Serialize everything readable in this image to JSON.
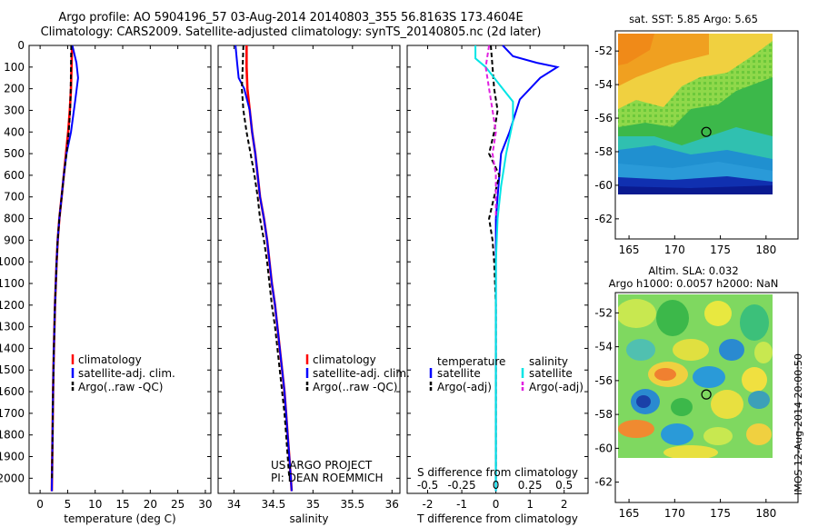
{
  "figure": {
    "title_line1": "Argo profile: AO 5904196_57 03-Aug-2014 20140803_355 56.8163S 173.4604E",
    "title_line2": "Climatology: CARS2009. Satellite-adjusted climatology: synTS_20140805.nc (2d later)",
    "project_line1": "US ARGO PROJECT",
    "project_line2": "PI: DEAN ROEMMICH",
    "stamp": "IMOS 12-Aug-2014 20:00:50",
    "colors": {
      "climatology": "#ff0000",
      "satellite": "#0000ff",
      "argo": "#000000",
      "satellite_salinity": "#00e5e5",
      "argo_salinity": "#e020e0"
    }
  },
  "chart_data": [
    {
      "type": "line",
      "xlabel": "temperature (deg C)",
      "xlim": [
        -2,
        31
      ],
      "xticks": [
        0,
        5,
        10,
        15,
        20,
        25,
        30
      ],
      "ylim": [
        2070,
        0
      ],
      "yticks": [
        0,
        100,
        200,
        300,
        400,
        500,
        600,
        700,
        800,
        900,
        1000,
        1100,
        1200,
        1300,
        1400,
        1500,
        1600,
        1700,
        1800,
        1900,
        2000
      ],
      "legend": [
        "climatology",
        "satellite-adj. clim.",
        "Argo(..raw -QC)"
      ],
      "series": [
        {
          "name": "climatology",
          "color": "#ff0000",
          "dash": "",
          "x": [
            5.8,
            5.7,
            5.6,
            5.4,
            5.1,
            4.7,
            4.3,
            3.9,
            3.5,
            3.2,
            3.0,
            2.85,
            2.7,
            2.6,
            2.5,
            2.42,
            2.35,
            2.3,
            2.25,
            2.2,
            2.15,
            2.12
          ],
          "y": [
            0,
            100,
            200,
            300,
            400,
            500,
            600,
            700,
            800,
            900,
            1000,
            1100,
            1200,
            1300,
            1400,
            1500,
            1600,
            1700,
            1800,
            1900,
            2000,
            2060
          ]
        },
        {
          "name": "satellite-adj. clim.",
          "color": "#0000ff",
          "dash": "",
          "x": [
            5.85,
            6.6,
            6.9,
            6.4,
            5.6,
            4.8,
            4.3,
            3.9,
            3.5,
            3.2,
            3.0,
            2.85,
            2.7,
            2.6,
            2.5,
            2.42,
            2.35,
            2.3,
            2.25,
            2.2,
            2.15,
            2.12
          ],
          "y": [
            0,
            80,
            150,
            250,
            400,
            500,
            600,
            700,
            800,
            900,
            1000,
            1100,
            1200,
            1300,
            1400,
            1500,
            1600,
            1700,
            1800,
            1900,
            2000,
            2060
          ]
        },
        {
          "name": "Argo(..raw -QC)",
          "color": "#000000",
          "dash": "5,3",
          "x": [
            5.65,
            5.6,
            5.55,
            5.45,
            5.2,
            4.8,
            4.3,
            3.9,
            3.5,
            3.2,
            3.0,
            2.85,
            2.7,
            2.6,
            2.5,
            2.42,
            2.35,
            2.3,
            2.25,
            2.2,
            2.15
          ],
          "y": [
            0,
            100,
            200,
            300,
            400,
            500,
            600,
            700,
            800,
            900,
            1000,
            1100,
            1200,
            1300,
            1400,
            1500,
            1600,
            1700,
            1800,
            1900,
            2000
          ]
        }
      ]
    },
    {
      "type": "line",
      "xlabel": "salinity",
      "xlim": [
        33.8,
        36.1
      ],
      "xticks": [
        34,
        34.5,
        35,
        35.5,
        36
      ],
      "ylim": [
        2070,
        0
      ],
      "legend": [
        "climatology",
        "satellite-adj. clim.",
        "Argo(..raw -QC)"
      ],
      "series": [
        {
          "name": "climatology",
          "color": "#ff0000",
          "dash": "",
          "x": [
            34.16,
            34.16,
            34.17,
            34.2,
            34.23,
            34.27,
            34.3,
            34.33,
            34.38,
            34.42,
            34.45,
            34.48,
            34.52,
            34.55,
            34.58,
            34.61,
            34.64,
            34.66,
            34.68,
            34.7,
            34.72,
            34.73
          ],
          "y": [
            0,
            100,
            200,
            300,
            400,
            500,
            600,
            700,
            800,
            900,
            1000,
            1100,
            1200,
            1300,
            1400,
            1500,
            1600,
            1700,
            1800,
            1900,
            2000,
            2060
          ]
        },
        {
          "name": "satellite-adj. clim.",
          "color": "#0000ff",
          "dash": "",
          "x": [
            34.02,
            34.04,
            34.06,
            34.13,
            34.2,
            34.23,
            34.27,
            34.3,
            34.33,
            34.38,
            34.42,
            34.45,
            34.48,
            34.52,
            34.55,
            34.58,
            34.61,
            34.64,
            34.66,
            34.68,
            34.7,
            34.72,
            34.73
          ],
          "y": [
            0,
            80,
            150,
            200,
            300,
            400,
            500,
            600,
            700,
            800,
            900,
            1000,
            1100,
            1200,
            1300,
            1400,
            1500,
            1600,
            1700,
            1800,
            1900,
            2000,
            2060
          ]
        },
        {
          "name": "Argo(..raw -QC)",
          "color": "#000000",
          "dash": "5,3",
          "x": [
            34.12,
            34.11,
            34.1,
            34.12,
            34.16,
            34.21,
            34.26,
            34.3,
            34.33,
            34.38,
            34.42,
            34.45,
            34.48,
            34.52,
            34.55,
            34.58,
            34.61,
            34.64,
            34.66,
            34.68,
            34.7
          ],
          "y": [
            0,
            100,
            200,
            300,
            400,
            500,
            600,
            700,
            800,
            900,
            1000,
            1100,
            1200,
            1300,
            1400,
            1500,
            1600,
            1700,
            1800,
            1900,
            2000
          ]
        }
      ]
    },
    {
      "type": "line",
      "xlabel": "T difference from climatology",
      "xlabel_top": "S difference from climatology",
      "xlim": [
        -2.6,
        2.7
      ],
      "xticks": [
        -2,
        -1,
        0,
        1,
        2
      ],
      "top_ticks": [
        "-0.5",
        "-0.25",
        "0",
        "0.25",
        "0.5"
      ],
      "top_tick_positions": [
        -2,
        -1,
        0,
        1,
        2
      ],
      "ylim": [
        2070,
        0
      ],
      "legend_temperature_title": "temperature",
      "legend_salinity_title": "salinity",
      "legend_temperature": [
        "satellite",
        "Argo(-adj)"
      ],
      "legend_salinity": [
        "satellite",
        "Argo(-adj)"
      ],
      "series": [
        {
          "name": "satellite",
          "color": "#0000ff",
          "dash": "",
          "x": [
            0.2,
            0.5,
            1.2,
            1.8,
            1.3,
            0.7,
            0.4,
            0.15,
            0.1,
            0.05,
            0.0,
            0.0,
            0.0,
            0.0,
            0.0,
            0.0,
            0.0,
            0.0,
            0.0
          ],
          "y": [
            0,
            50,
            80,
            100,
            150,
            250,
            400,
            500,
            600,
            700,
            800,
            900,
            1000,
            1200,
            1400,
            1600,
            1800,
            2000,
            2060
          ]
        },
        {
          "name": "Argo(-adj)",
          "color": "#000000",
          "dash": "5,3",
          "x": [
            -0.15,
            -0.1,
            -0.05,
            0.05,
            -0.05,
            -0.2,
            0.1,
            -0.05,
            -0.2,
            -0.1,
            -0.05,
            0.0,
            0.0,
            0.0,
            0.0
          ],
          "y": [
            0,
            100,
            200,
            300,
            400,
            500,
            600,
            700,
            800,
            900,
            1000,
            1200,
            1400,
            1600,
            2000
          ]
        },
        {
          "name": "satellite",
          "color": "#00e5e5",
          "dash": "",
          "x": [
            -0.6,
            -0.6,
            -0.3,
            0.2,
            0.5,
            0.5,
            0.3,
            0.15,
            0.05,
            0.0,
            0.0,
            0.0,
            0.0,
            0.0
          ],
          "y": [
            0,
            60,
            100,
            200,
            260,
            350,
            500,
            650,
            800,
            1000,
            1200,
            1500,
            1800,
            2060
          ]
        },
        {
          "name": "Argo(-adj)",
          "color": "#e020e0",
          "dash": "5,3",
          "x": [
            -0.2,
            -0.3,
            -0.2,
            -0.1,
            0.0,
            -0.1,
            0.0,
            0.0,
            0.0
          ],
          "y": [
            0,
            100,
            200,
            300,
            400,
            500,
            600,
            700,
            800
          ]
        }
      ]
    },
    {
      "type": "heatmap",
      "title": "sat. SST: 5.85  Argo: 5.65",
      "xlim": [
        163.5,
        183.5
      ],
      "ylim": [
        -63.2,
        -50.8
      ],
      "xticks": [
        165,
        170,
        175,
        180
      ],
      "yticks": [
        -52,
        -54,
        -56,
        -58,
        -60,
        -62
      ],
      "marker": {
        "lon": 173.46,
        "lat": -56.82
      }
    },
    {
      "type": "heatmap",
      "title_line1": "Altim. SLA: 0.032",
      "title_line2": "Argo h1000: 0.0057 h2000: NaN",
      "xlim": [
        163.5,
        183.5
      ],
      "ylim": [
        -63.2,
        -50.8
      ],
      "xticks": [
        165,
        170,
        175,
        180
      ],
      "yticks": [
        -52,
        -54,
        -56,
        -58,
        -60,
        -62
      ],
      "marker": {
        "lon": 173.46,
        "lat": -56.82
      }
    }
  ]
}
